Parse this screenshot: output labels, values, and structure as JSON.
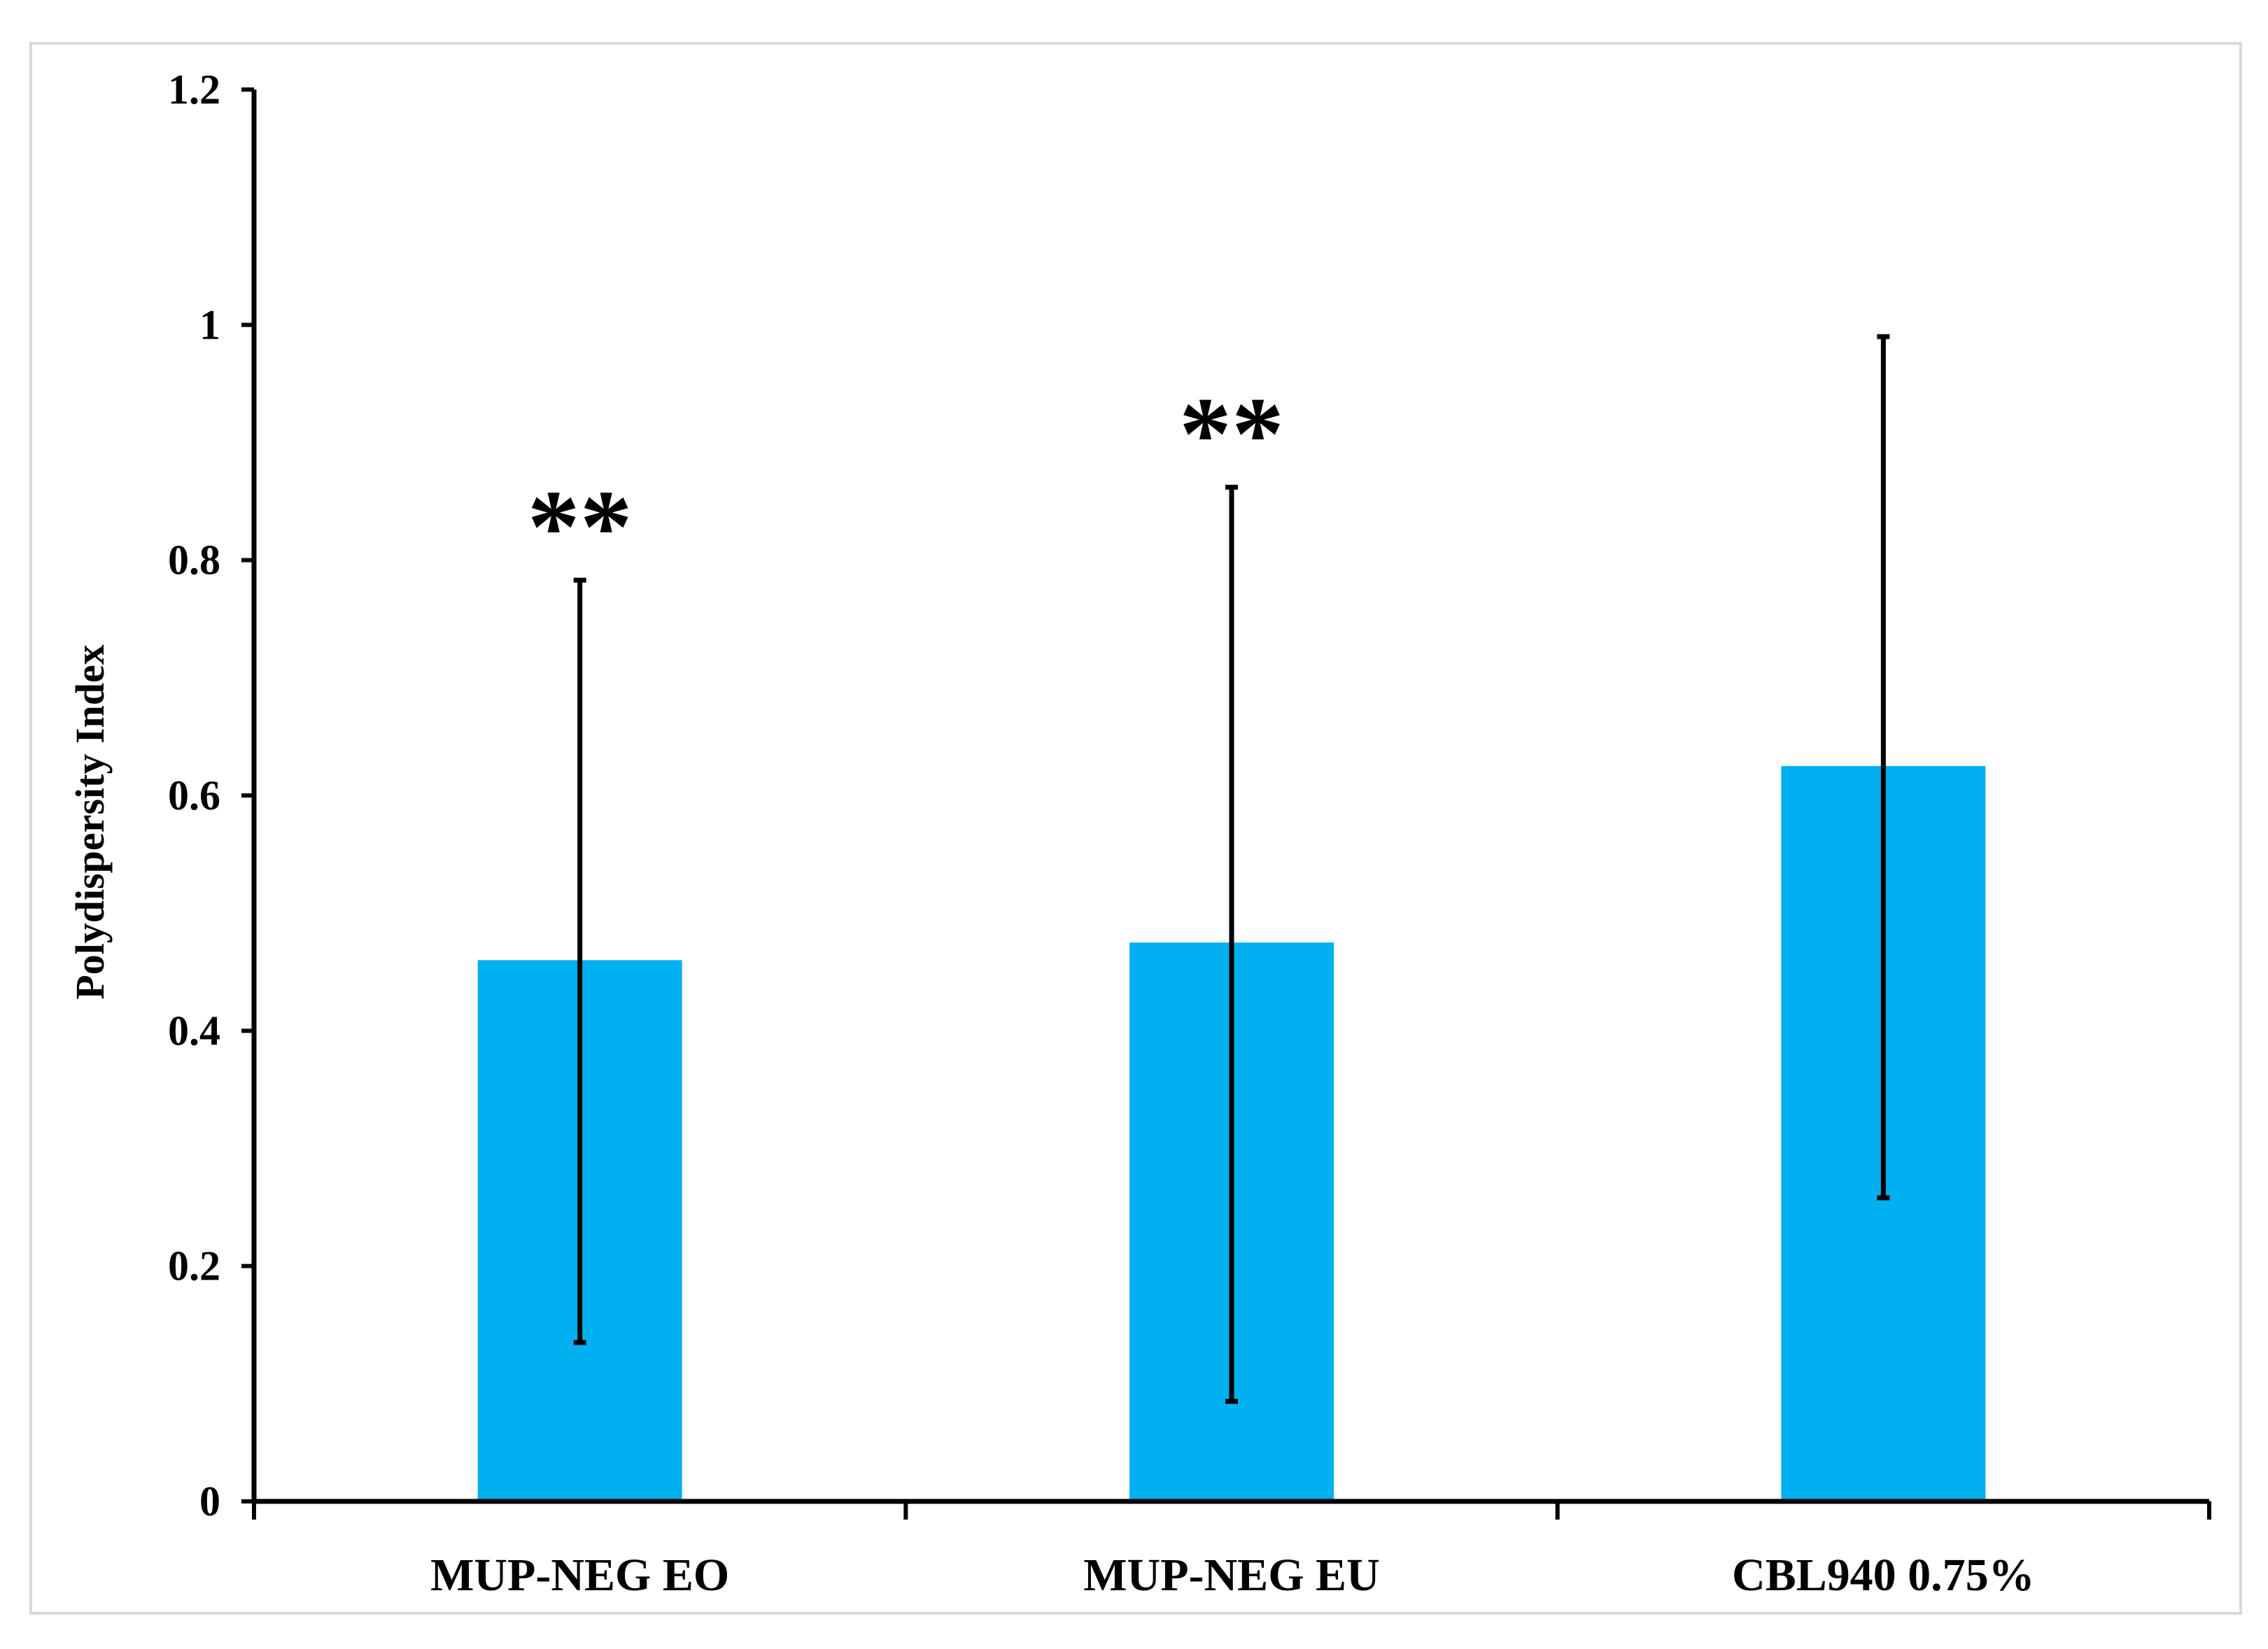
{
  "chart_data": {
    "type": "bar",
    "title": "",
    "xlabel": "",
    "ylabel": "Polydispersity Index",
    "ylim": [
      0,
      1.2
    ],
    "yticks": [
      0,
      0.2,
      0.4,
      0.6,
      0.8,
      1,
      1.2
    ],
    "ytick_labels": [
      "0",
      "0.2",
      "0.4",
      "0.6",
      "0.8",
      "1",
      "1.2"
    ],
    "grid": false,
    "legend": "none",
    "categories": [
      "MUP-NEG EO",
      "MUP-NEG EU",
      "CBL940 0.75%"
    ],
    "values": [
      0.46,
      0.475,
      0.625
    ],
    "error_low": [
      0.135,
      0.085,
      0.258
    ],
    "error_high": [
      0.783,
      0.862,
      0.99
    ],
    "annotations": [
      "**",
      "**",
      ""
    ],
    "bar_color": "#00B0F0",
    "axis_color": "#000000",
    "frame_color": "#D9D9D9"
  }
}
